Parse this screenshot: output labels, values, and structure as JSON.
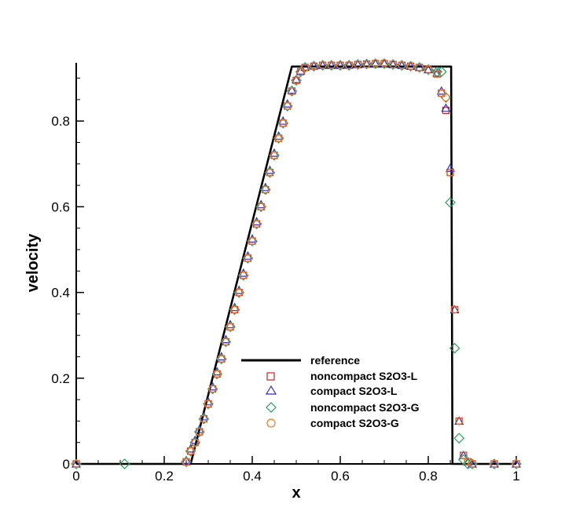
{
  "chart_data": {
    "type": "line",
    "xlabel": "x",
    "ylabel": "velocity",
    "xlim": [
      0,
      1
    ],
    "ylim": [
      0,
      0.93
    ],
    "x_ticks": [
      0,
      0.2,
      0.4,
      0.6,
      0.8,
      1
    ],
    "x_tick_labels": [
      "0",
      "0.2",
      "0.4",
      "0.6",
      "0.8",
      "1"
    ],
    "y_ticks": [
      0,
      0.2,
      0.4,
      0.6,
      0.8
    ],
    "y_tick_labels": [
      "0",
      "0.2",
      "0.4",
      "0.6",
      "0.8"
    ],
    "grid": false,
    "legend_position": "lower-center",
    "series": [
      {
        "name": "reference",
        "style": "line",
        "color": "#000000",
        "x": [
          0,
          0.26,
          0.49,
          0.852,
          0.855,
          1
        ],
        "y": [
          0,
          0,
          0.927,
          0.927,
          0,
          0
        ]
      },
      {
        "name": "noncompact S2O3-L",
        "style": "marker",
        "marker": "square",
        "color": "#cc2222",
        "x": [
          0,
          0.25,
          0.26,
          0.27,
          0.28,
          0.29,
          0.3,
          0.31,
          0.32,
          0.33,
          0.34,
          0.35,
          0.36,
          0.37,
          0.38,
          0.39,
          0.4,
          0.41,
          0.42,
          0.43,
          0.44,
          0.45,
          0.46,
          0.47,
          0.48,
          0.49,
          0.5,
          0.51,
          0.52,
          0.54,
          0.56,
          0.58,
          0.6,
          0.62,
          0.64,
          0.66,
          0.68,
          0.7,
          0.72,
          0.74,
          0.76,
          0.78,
          0.8,
          0.82,
          0.83,
          0.84,
          0.85,
          0.86,
          0.87,
          0.88,
          0.89,
          0.9,
          0.95,
          1.0
        ],
        "y": [
          0,
          0.005,
          0.03,
          0.05,
          0.075,
          0.105,
          0.14,
          0.175,
          0.21,
          0.245,
          0.285,
          0.32,
          0.36,
          0.4,
          0.44,
          0.48,
          0.52,
          0.56,
          0.6,
          0.64,
          0.68,
          0.72,
          0.76,
          0.795,
          0.835,
          0.87,
          0.895,
          0.915,
          0.925,
          0.928,
          0.93,
          0.93,
          0.93,
          0.93,
          0.932,
          0.933,
          0.934,
          0.934,
          0.932,
          0.93,
          0.928,
          0.925,
          0.92,
          0.91,
          0.865,
          0.825,
          0.68,
          0.36,
          0.1,
          0.02,
          0.005,
          0,
          0,
          0
        ]
      },
      {
        "name": "compact S2O3-L",
        "style": "marker",
        "marker": "triangle",
        "color": "#2a2ad8",
        "x": [
          0,
          0.25,
          0.26,
          0.27,
          0.28,
          0.29,
          0.3,
          0.31,
          0.32,
          0.33,
          0.34,
          0.35,
          0.36,
          0.37,
          0.38,
          0.39,
          0.4,
          0.41,
          0.42,
          0.43,
          0.44,
          0.45,
          0.46,
          0.47,
          0.48,
          0.49,
          0.5,
          0.51,
          0.52,
          0.54,
          0.56,
          0.58,
          0.6,
          0.62,
          0.64,
          0.66,
          0.68,
          0.7,
          0.72,
          0.74,
          0.76,
          0.78,
          0.8,
          0.82,
          0.83,
          0.84,
          0.85,
          0.86,
          0.87,
          0.88,
          0.89,
          0.9,
          0.95,
          1.0
        ],
        "y": [
          0,
          0.008,
          0.035,
          0.055,
          0.08,
          0.11,
          0.145,
          0.18,
          0.215,
          0.25,
          0.29,
          0.325,
          0.365,
          0.405,
          0.445,
          0.485,
          0.525,
          0.565,
          0.605,
          0.645,
          0.685,
          0.725,
          0.765,
          0.8,
          0.84,
          0.872,
          0.897,
          0.917,
          0.926,
          0.929,
          0.93,
          0.93,
          0.93,
          0.931,
          0.932,
          0.933,
          0.934,
          0.934,
          0.932,
          0.93,
          0.928,
          0.925,
          0.92,
          0.912,
          0.87,
          0.83,
          0.69,
          0.36,
          0.1,
          0.02,
          0.005,
          0,
          0,
          0
        ]
      },
      {
        "name": "noncompact S2O3-G",
        "style": "marker",
        "marker": "diamond",
        "color": "#22a05a",
        "x": [
          0,
          0.11,
          0.25,
          0.26,
          0.27,
          0.28,
          0.29,
          0.3,
          0.31,
          0.32,
          0.33,
          0.34,
          0.35,
          0.36,
          0.37,
          0.38,
          0.39,
          0.4,
          0.41,
          0.42,
          0.43,
          0.44,
          0.45,
          0.46,
          0.47,
          0.48,
          0.49,
          0.5,
          0.51,
          0.52,
          0.54,
          0.56,
          0.58,
          0.6,
          0.62,
          0.64,
          0.66,
          0.68,
          0.7,
          0.72,
          0.74,
          0.76,
          0.78,
          0.8,
          0.82,
          0.83,
          0.84,
          0.85,
          0.86,
          0.87,
          0.88,
          0.89,
          0.9,
          0.95,
          1.0
        ],
        "y": [
          0,
          0,
          0.005,
          0.03,
          0.05,
          0.075,
          0.105,
          0.14,
          0.175,
          0.21,
          0.245,
          0.285,
          0.32,
          0.36,
          0.4,
          0.44,
          0.48,
          0.52,
          0.56,
          0.6,
          0.64,
          0.68,
          0.72,
          0.76,
          0.795,
          0.835,
          0.87,
          0.895,
          0.915,
          0.925,
          0.928,
          0.93,
          0.93,
          0.93,
          0.93,
          0.932,
          0.933,
          0.934,
          0.934,
          0.932,
          0.93,
          0.928,
          0.925,
          0.92,
          0.915,
          0.915,
          0.855,
          0.61,
          0.27,
          0.06,
          0.01,
          0,
          0,
          0,
          0
        ]
      },
      {
        "name": "compact S2O3-G",
        "style": "marker",
        "marker": "circle",
        "color": "#f07820",
        "x": [
          0,
          0.25,
          0.26,
          0.27,
          0.28,
          0.29,
          0.3,
          0.31,
          0.32,
          0.33,
          0.34,
          0.35,
          0.36,
          0.37,
          0.38,
          0.39,
          0.4,
          0.41,
          0.42,
          0.43,
          0.44,
          0.45,
          0.46,
          0.47,
          0.48,
          0.49,
          0.5,
          0.51,
          0.52,
          0.54,
          0.56,
          0.58,
          0.6,
          0.62,
          0.64,
          0.66,
          0.68,
          0.7,
          0.72,
          0.74,
          0.76,
          0.78,
          0.8,
          0.82,
          0.83,
          0.84,
          0.85,
          0.86,
          0.87,
          0.88,
          0.89,
          0.9,
          0.95,
          1.0
        ],
        "y": [
          0,
          0.005,
          0.03,
          0.05,
          0.075,
          0.105,
          0.14,
          0.175,
          0.21,
          0.245,
          0.285,
          0.32,
          0.36,
          0.4,
          0.44,
          0.48,
          0.52,
          0.56,
          0.6,
          0.64,
          0.68,
          0.72,
          0.76,
          0.795,
          0.835,
          0.87,
          0.895,
          0.915,
          0.925,
          0.928,
          0.93,
          0.93,
          0.93,
          0.93,
          0.932,
          0.933,
          0.935,
          0.935,
          0.933,
          0.93,
          0.928,
          0.925,
          0.92,
          0.91,
          0.865,
          0.855,
          0.68,
          0.36,
          0.1,
          0.02,
          0.005,
          0,
          0,
          0
        ]
      }
    ]
  }
}
